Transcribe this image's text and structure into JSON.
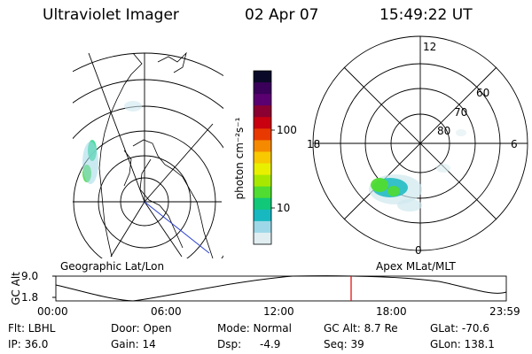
{
  "header": {
    "instrument": "Ultraviolet Imager",
    "date": "02 Apr 07",
    "time": "15:49:22 UT"
  },
  "geo_panel": {
    "label": "Geographic Lat/Lon"
  },
  "colorbar": {
    "unit_label": "photon cm⁻²s⁻¹",
    "ticks": [
      "100",
      "10"
    ],
    "colors": [
      "#0a0a28",
      "#3a005a",
      "#5a0070",
      "#8a0030",
      "#c80010",
      "#e83a00",
      "#f58a00",
      "#f8c800",
      "#e8f000",
      "#a8e800",
      "#50dc30",
      "#10c878",
      "#18b8c0",
      "#9ed8e8",
      "#e0eef2"
    ]
  },
  "polar_panel": {
    "label": "Apex MLat/MLT",
    "mlt_labels": {
      "top": "12",
      "right": "6",
      "bottom": "0",
      "left": "18"
    },
    "lat_labels": [
      "60",
      "70",
      "80"
    ]
  },
  "alt_timeline": {
    "ylabel": "GC Alt",
    "yticks": [
      "9.0",
      "1.8"
    ],
    "xticks": [
      "00:00",
      "06:00",
      "12:00",
      "18:00",
      "23:59"
    ],
    "current_time_marker": "15:49",
    "marker_color": "#e00000"
  },
  "info": {
    "filter_label": "Flt: LBHL",
    "door_label": "Door: Open",
    "mode_label": "Mode: Normal",
    "gc_alt_label": "GC Alt: 8.7 Re",
    "glat_label": "GLat: -70.6",
    "ip_label": "IP: 36.0",
    "gain_label": "Gain: 14",
    "dsp_label": "Dsp:",
    "dsp_value": "-4.9",
    "seq_label": "Seq: 39",
    "glon_label": "GLon: 138.1"
  }
}
